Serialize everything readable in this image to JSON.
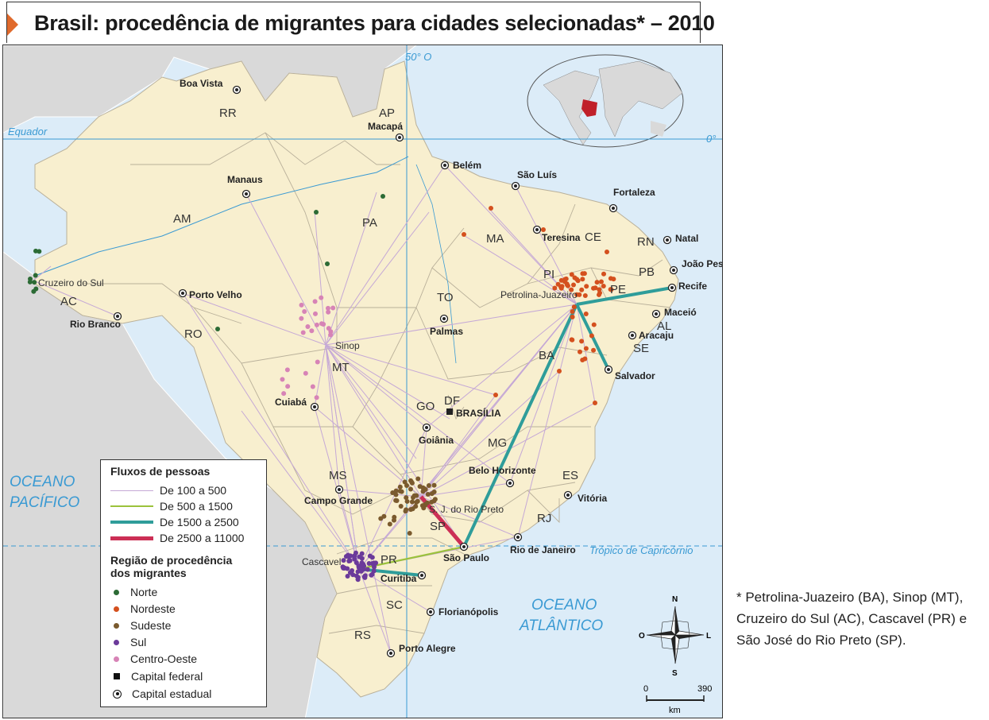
{
  "title": "Brasil: procedência de migrantes para cidades selecionadas* – 2010",
  "footnote": "* Petrolina-Juazeiro (BA), Sinop (MT), Cruzeiro do Sul (AC), Cascavel (PR) e São José do Rio Preto (SP).",
  "map_labels": {
    "meridian": "50° O",
    "equator": "Equador",
    "equator_deg": "0°",
    "tropic": "Trópico de Capricórnio",
    "ocean_pacific": [
      "OCEANO",
      "PACÍFICO"
    ],
    "ocean_atlantic": [
      "OCEANO",
      "ATLÂNTICO"
    ]
  },
  "states": [
    "RR",
    "AP",
    "AM",
    "PA",
    "MA",
    "CE",
    "RN",
    "PB",
    "PE",
    "PI",
    "AL",
    "SE",
    "AC",
    "RO",
    "TO",
    "BA",
    "MT",
    "DF",
    "GO",
    "MG",
    "ES",
    "MS",
    "SP",
    "RJ",
    "PR",
    "SC",
    "RS"
  ],
  "capitals": [
    "Boa Vista",
    "Macapá",
    "Belém",
    "São Luís",
    "Fortaleza",
    "Manaus",
    "Teresina",
    "Natal",
    "João Pessoa",
    "Recife",
    "Maceió",
    "Aracaju",
    "Salvador",
    "Porto Velho",
    "Rio Branco",
    "Palmas",
    "Cuiabá",
    "Goiânia",
    "Belo Horizonte",
    "Vitória",
    "Campo Grande",
    "Rio de Janeiro",
    "São Paulo",
    "Curitiba",
    "Florianópolis",
    "Porto Alegre"
  ],
  "federal_capital": "BRASÍLIA",
  "selected_cities": [
    "Cruzeiro do Sul",
    "Sinop",
    "Petrolina-Juazeiro",
    "Cascavel",
    "S. J. do Rio Preto"
  ],
  "legend": {
    "flows_title": "Fluxos de pessoas",
    "flows": [
      {
        "label": "De 100 a 500",
        "color": "#c5a8d6"
      },
      {
        "label": "De 500 a 1500",
        "color": "#9bc23c"
      },
      {
        "label": "De 1500 a 2500",
        "color": "#2f9d9a"
      },
      {
        "label": "De 2500 a 11000",
        "color": "#cc2f55"
      }
    ],
    "region_title": [
      "Região de procedência",
      "dos migrantes"
    ],
    "regions": [
      {
        "label": "Norte",
        "color": "#2c6b35"
      },
      {
        "label": "Nordeste",
        "color": "#d4501e"
      },
      {
        "label": "Sudeste",
        "color": "#7a5a2e"
      },
      {
        "label": "Sul",
        "color": "#6b3a9a"
      },
      {
        "label": "Centro-Oeste",
        "color": "#d783b6"
      }
    ],
    "federal_capital": "Capital federal",
    "state_capital": "Capital estadual"
  },
  "compass": {
    "n": "N",
    "s": "S",
    "o": "O",
    "l": "L"
  },
  "scale": {
    "start": "0",
    "end": "390",
    "unit": "km"
  }
}
